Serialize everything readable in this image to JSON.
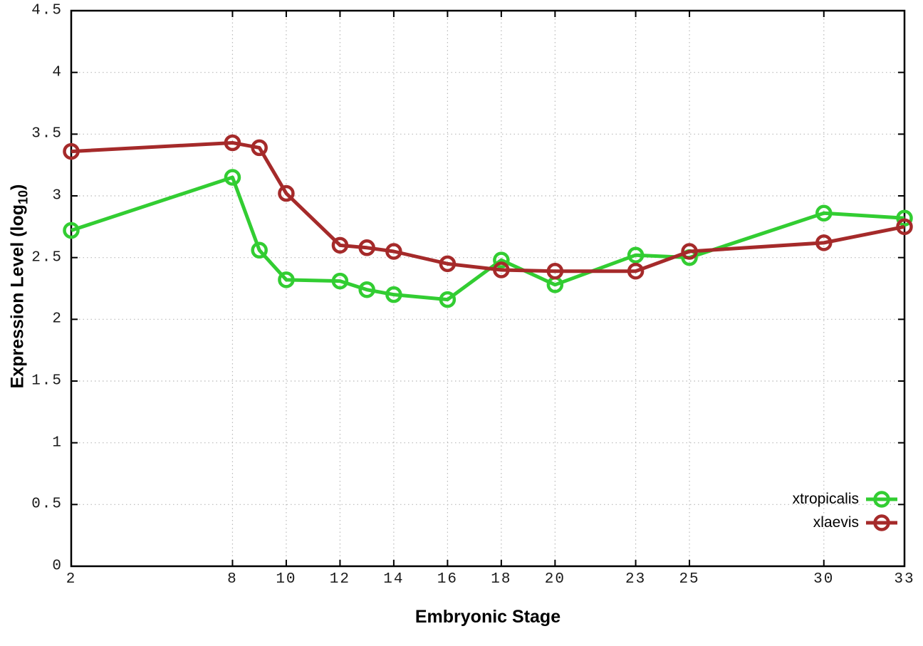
{
  "chart_data": {
    "type": "line",
    "title": "",
    "xlabel": "Embryonic Stage",
    "ylabel": {
      "prefix": "Expression Level (log",
      "sub": "10",
      "suffix": ")"
    },
    "xlim": [
      2,
      33
    ],
    "ylim": [
      0,
      4.5
    ],
    "grid": true,
    "legend_position": "bottom-right",
    "xticks": [
      2,
      8,
      10,
      12,
      14,
      16,
      18,
      20,
      23,
      25,
      30,
      33
    ],
    "yticks": [
      "0",
      "0.5",
      "1",
      "1.5",
      "2",
      "2.5",
      "3",
      "3.5",
      "4",
      "4.5"
    ],
    "x": [
      2,
      8,
      9,
      10,
      12,
      13,
      14,
      16,
      18,
      20,
      23,
      25,
      30,
      33
    ],
    "series": [
      {
        "name": "xtropicalis",
        "color": "#32cd32",
        "marker": "open-circle",
        "values": [
          2.72,
          3.15,
          2.56,
          2.32,
          2.31,
          2.24,
          2.2,
          2.16,
          2.48,
          2.28,
          2.52,
          2.5,
          2.86,
          2.82
        ]
      },
      {
        "name": "xlaevis",
        "color": "#a52a2a",
        "marker": "open-circle",
        "values": [
          3.36,
          3.43,
          3.39,
          3.02,
          2.6,
          2.58,
          2.55,
          2.45,
          2.4,
          2.39,
          2.39,
          2.55,
          2.62,
          2.75
        ]
      }
    ]
  },
  "colors": {
    "background": "#ffffff",
    "frame": "#000000",
    "grid": "#b9b9b9",
    "tick_text": "#1a1a1a"
  }
}
